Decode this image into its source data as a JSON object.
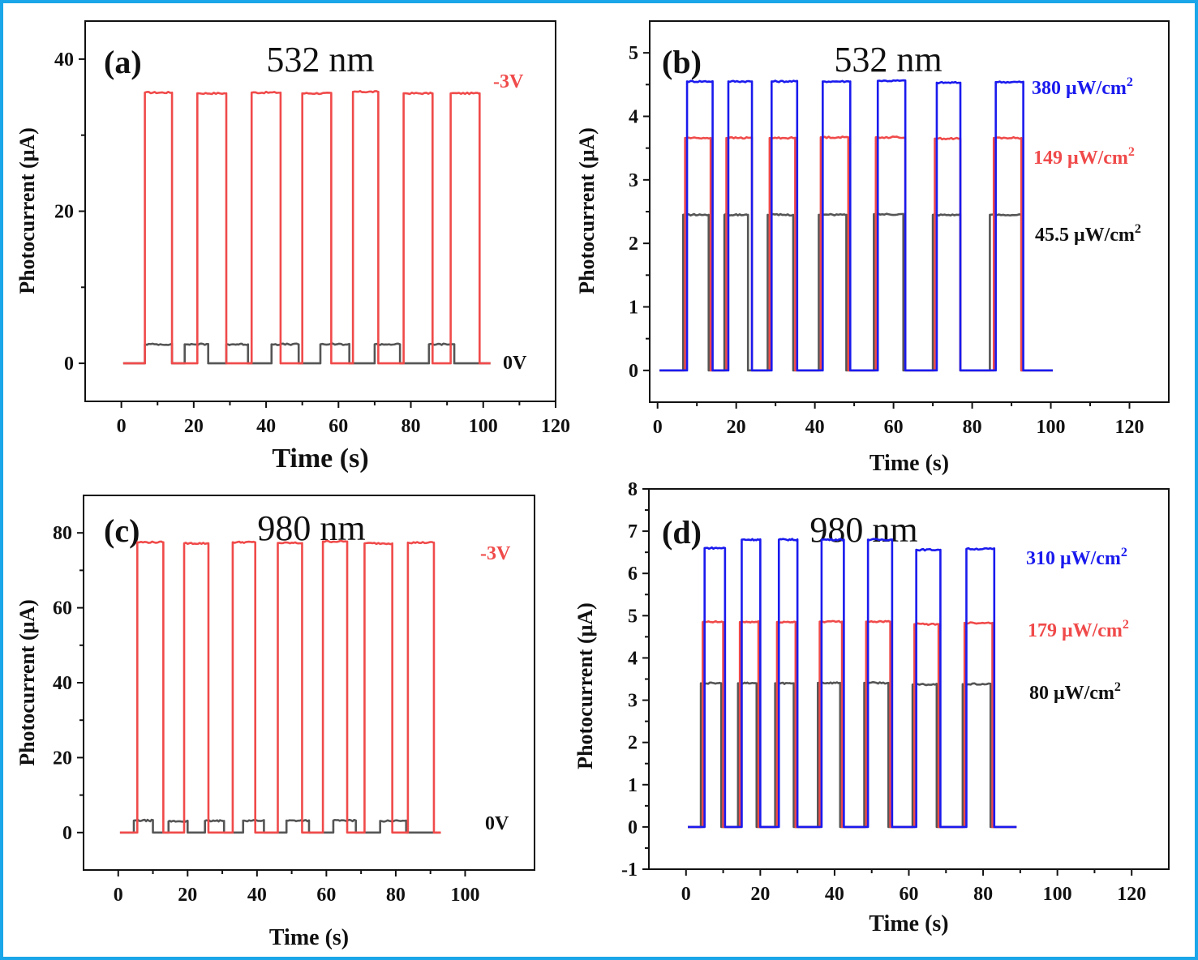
{
  "chart_data": [
    {
      "type": "line",
      "panel_label": "(a)",
      "title": "532 nm",
      "xlabel": "Time (s)",
      "ylabel": "Photocurrent (μA)",
      "xlim": [
        -10,
        120
      ],
      "ylim": [
        -5,
        45
      ],
      "xticks": [
        "0",
        "20",
        "40",
        "60",
        "80",
        "100",
        "120"
      ],
      "yticks": [
        "0",
        "20",
        "40"
      ],
      "series": [
        {
          "name": "-3V",
          "color": "#f04a4a",
          "baseline": 0,
          "x_end": 102,
          "pulses": [
            [
              6.5,
              14,
              35.6
            ],
            [
              21,
              29,
              35.5
            ],
            [
              36,
              44,
              35.6
            ],
            [
              50,
              58,
              35.5
            ],
            [
              64,
              71,
              35.7
            ],
            [
              78,
              86,
              35.5
            ],
            [
              91,
              99,
              35.5
            ]
          ]
        },
        {
          "name": "0V",
          "color": "#555555",
          "baseline": 0,
          "x_end": 102,
          "pulses": [
            [
              6.5,
              14,
              2.5
            ],
            [
              17.5,
              24,
              2.5
            ],
            [
              29,
              35,
              2.5
            ],
            [
              41.5,
              49,
              2.5
            ],
            [
              55,
              63,
              2.5
            ],
            [
              70,
              77,
              2.5
            ],
            [
              85,
              92,
              2.5
            ]
          ]
        }
      ]
    },
    {
      "type": "line",
      "panel_label": "(b)",
      "title": "532 nm",
      "xlabel": "Time (s)",
      "ylabel": "Photocurrent (μA)",
      "xlim": [
        -2,
        130
      ],
      "ylim": [
        -0.5,
        5.5
      ],
      "xticks": [
        "0",
        "20",
        "40",
        "60",
        "80",
        "100",
        "120"
      ],
      "yticks": [
        "0",
        "1",
        "2",
        "3",
        "4",
        "5"
      ],
      "series": [
        {
          "name": "380 μW/cm²",
          "color": "#1a1aee",
          "baseline": 0,
          "x_end": 100.5,
          "pulses": [
            [
              7.5,
              14,
              4.55
            ],
            [
              18,
              24,
              4.55
            ],
            [
              29,
              35.5,
              4.55
            ],
            [
              42,
              49,
              4.55
            ],
            [
              56,
              63,
              4.56
            ],
            [
              71,
              77,
              4.53
            ],
            [
              86,
              93,
              4.54
            ]
          ]
        },
        {
          "name": "149 μW/cm²",
          "color": "#f04a4a",
          "baseline": 0,
          "x_end": 100.5,
          "pulses": [
            [
              7,
              13.5,
              3.66
            ],
            [
              17.5,
              24,
              3.66
            ],
            [
              28.5,
              35,
              3.66
            ],
            [
              41.5,
              48.5,
              3.67
            ],
            [
              55.5,
              63,
              3.67
            ],
            [
              70.5,
              77,
              3.65
            ],
            [
              85.5,
              92.5,
              3.66
            ]
          ]
        },
        {
          "name": "45.5 μW/cm²",
          "color": "#555555",
          "baseline": 0,
          "x_end": 100.5,
          "pulses": [
            [
              6.5,
              13,
              2.45
            ],
            [
              17,
              23,
              2.45
            ],
            [
              28,
              34.5,
              2.45
            ],
            [
              41,
              48,
              2.45
            ],
            [
              55,
              62.5,
              2.46
            ],
            [
              70,
              77,
              2.45
            ],
            [
              84.5,
              92.5,
              2.45
            ]
          ]
        }
      ]
    },
    {
      "type": "line",
      "panel_label": "(c)",
      "title": "980 nm",
      "xlabel": "Time (s)",
      "ylabel": "Photocurrent (μA)",
      "xlim": [
        -10,
        120
      ],
      "ylim": [
        -10,
        90
      ],
      "xticks": [
        "0",
        "20",
        "40",
        "60",
        "80",
        "100"
      ],
      "yticks": [
        "0",
        "20",
        "40",
        "60",
        "80"
      ],
      "series": [
        {
          "name": "-3V",
          "color": "#f04a4a",
          "baseline": 0,
          "x_end": 93,
          "pulses": [
            [
              5.5,
              13,
              77.5
            ],
            [
              19,
              26,
              77.2
            ],
            [
              33,
              39.5,
              77.5
            ],
            [
              46,
              53,
              77.3
            ],
            [
              59,
              66,
              77.7
            ],
            [
              71,
              79,
              77.2
            ],
            [
              83.5,
              91,
              77.4
            ]
          ]
        },
        {
          "name": "0V",
          "color": "#555555",
          "baseline": 0,
          "x_end": 93,
          "pulses": [
            [
              4.5,
              10,
              3.2
            ],
            [
              14.5,
              20,
              3.0
            ],
            [
              25,
              30.5,
              3.1
            ],
            [
              36,
              42,
              3.2
            ],
            [
              48.5,
              55,
              3.2
            ],
            [
              62,
              68.5,
              3.2
            ],
            [
              75.5,
              83,
              3.1
            ]
          ]
        }
      ]
    },
    {
      "type": "line",
      "panel_label": "(d)",
      "title": "980 nm",
      "xlabel": "Time (s)",
      "ylabel": "Photocurrent (μA)",
      "xlim": [
        -10,
        130
      ],
      "ylim": [
        -1,
        8
      ],
      "xticks": [
        "0",
        "20",
        "40",
        "60",
        "80",
        "100",
        "120"
      ],
      "yticks": [
        "-1",
        "0",
        "1",
        "2",
        "3",
        "4",
        "5",
        "6",
        "7",
        "8"
      ],
      "series": [
        {
          "name": "310 μW/cm²",
          "color": "#1a1aee",
          "baseline": 0,
          "x_end": 89,
          "pulses": [
            [
              5,
              10.5,
              6.6
            ],
            [
              15,
              20,
              6.8
            ],
            [
              25,
              30,
              6.8
            ],
            [
              36.5,
              42.5,
              6.8
            ],
            [
              49,
              55.5,
              6.8
            ],
            [
              62,
              68.5,
              6.56
            ],
            [
              75.5,
              83,
              6.58
            ]
          ]
        },
        {
          "name": "179 μW/cm²",
          "color": "#f04a4a",
          "baseline": 0,
          "x_end": 89,
          "pulses": [
            [
              4.5,
              10,
              4.85
            ],
            [
              14.5,
              19.5,
              4.85
            ],
            [
              24.5,
              29.5,
              4.85
            ],
            [
              36,
              42,
              4.86
            ],
            [
              48.5,
              55,
              4.86
            ],
            [
              61.5,
              68,
              4.8
            ],
            [
              75,
              82.5,
              4.83
            ]
          ]
        },
        {
          "name": "80 μW/cm²",
          "color": "#555555",
          "baseline": 0,
          "x_end": 89,
          "pulses": [
            [
              4,
              9.5,
              3.4
            ],
            [
              14,
              19,
              3.4
            ],
            [
              24,
              29,
              3.4
            ],
            [
              35.5,
              41.5,
              3.41
            ],
            [
              48,
              54.5,
              3.41
            ],
            [
              61,
              67.5,
              3.37
            ],
            [
              74.5,
              82,
              3.38
            ]
          ]
        }
      ]
    }
  ]
}
